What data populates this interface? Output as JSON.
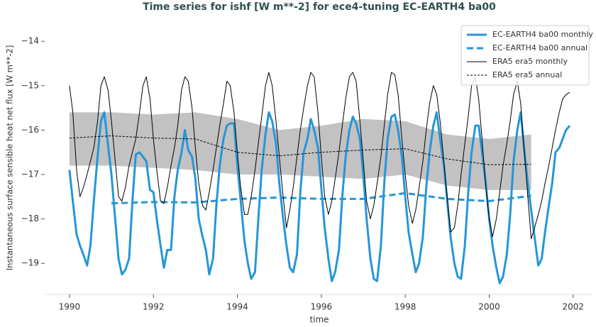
{
  "chart_data": {
    "type": "line",
    "title": "Time series for ishf [W m**-2] for ece4-tuning EC-EARTH4 ba00",
    "x_label": "time",
    "y_label": "Instantaneous surface sensible heat net flux [W m**-2]",
    "xlim": [
      1989.41,
      2002.46
    ],
    "ylim": [
      -19.7,
      -13.55
    ],
    "xticks": [
      1990,
      1992,
      1994,
      1996,
      1998,
      2000,
      2002
    ],
    "yticks": [
      {
        "value": -14,
        "label": "−14"
      },
      {
        "value": -15,
        "label": "−15"
      },
      {
        "value": -16,
        "label": "−16"
      },
      {
        "value": -17,
        "label": "−17"
      },
      {
        "value": -18,
        "label": "−18"
      },
      {
        "value": -19,
        "label": "−19"
      }
    ],
    "legend": "upper right",
    "x": [
      1990,
      1990.08,
      1990.17,
      1990.25,
      1990.33,
      1990.42,
      1990.5,
      1990.58,
      1990.67,
      1990.75,
      1990.83,
      1990.92,
      1991,
      1991.08,
      1991.17,
      1991.25,
      1991.33,
      1991.42,
      1991.5,
      1991.58,
      1991.67,
      1991.75,
      1991.83,
      1991.92,
      1992,
      1992.08,
      1992.17,
      1992.25,
      1992.33,
      1992.42,
      1992.5,
      1992.58,
      1992.67,
      1992.75,
      1992.83,
      1992.92,
      1993,
      1993.08,
      1993.17,
      1993.25,
      1993.33,
      1993.42,
      1993.5,
      1993.58,
      1993.67,
      1993.75,
      1993.83,
      1993.92,
      1994,
      1994.08,
      1994.17,
      1994.25,
      1994.33,
      1994.42,
      1994.5,
      1994.58,
      1994.67,
      1994.75,
      1994.83,
      1994.92,
      1995,
      1995.08,
      1995.17,
      1995.25,
      1995.33,
      1995.42,
      1995.5,
      1995.58,
      1995.67,
      1995.75,
      1995.83,
      1995.92,
      1996,
      1996.08,
      1996.17,
      1996.25,
      1996.33,
      1996.42,
      1996.5,
      1996.58,
      1996.67,
      1996.75,
      1996.83,
      1996.92,
      1997,
      1997.08,
      1997.17,
      1997.25,
      1997.33,
      1997.42,
      1997.5,
      1997.58,
      1997.67,
      1997.75,
      1997.83,
      1997.92,
      1998,
      1998.08,
      1998.17,
      1998.25,
      1998.33,
      1998.42,
      1998.5,
      1998.58,
      1998.67,
      1998.75,
      1998.83,
      1998.92,
      1999,
      1999.08,
      1999.17,
      1999.25,
      1999.33,
      1999.42,
      1999.5,
      1999.58,
      1999.67,
      1999.75,
      1999.83,
      1999.92,
      2000,
      2000.08,
      2000.17,
      2000.25,
      2000.33,
      2000.42,
      2000.5,
      2000.58,
      2000.67,
      2000.75,
      2000.83,
      2000.92,
      2001,
      2001.08,
      2001.17,
      2001.25,
      2001.33,
      2001.42,
      2001.5,
      2001.58,
      2001.67,
      2001.75,
      2001.83,
      2001.92
    ],
    "series": [
      {
        "name": "EC-EARTH4 ba00 monthly",
        "color": "#2596d9",
        "dash": false,
        "width": 3,
        "values": [
          -16.9,
          -17.6,
          -18.35,
          -18.6,
          -18.8,
          -19.05,
          -18.6,
          -17.6,
          -16.6,
          -15.8,
          -15.6,
          -16.35,
          -17.0,
          -17.9,
          -18.9,
          -19.25,
          -19.15,
          -18.9,
          -17.6,
          -16.55,
          -16.5,
          -16.6,
          -16.7,
          -17.35,
          -17.4,
          -18.0,
          -18.6,
          -19.1,
          -18.7,
          -18.7,
          -17.5,
          -16.9,
          -16.5,
          -16.0,
          -16.45,
          -16.6,
          -17.1,
          -18.0,
          -18.4,
          -18.7,
          -19.25,
          -18.9,
          -17.7,
          -16.8,
          -16.2,
          -15.9,
          -15.85,
          -15.85,
          -16.8,
          -17.6,
          -18.5,
          -19.0,
          -19.35,
          -19.2,
          -18.0,
          -16.9,
          -16.1,
          -15.6,
          -15.8,
          -16.3,
          -17.2,
          -17.9,
          -18.6,
          -19.1,
          -19.2,
          -18.8,
          -17.4,
          -16.5,
          -16.2,
          -15.75,
          -16.0,
          -16.4,
          -17.3,
          -18.2,
          -18.9,
          -19.4,
          -19.2,
          -18.7,
          -17.5,
          -16.6,
          -16.0,
          -15.7,
          -15.85,
          -16.2,
          -17.0,
          -18.0,
          -18.9,
          -19.35,
          -19.4,
          -18.6,
          -17.2,
          -16.2,
          -15.7,
          -15.65,
          -16.0,
          -16.6,
          -17.5,
          -18.3,
          -18.8,
          -19.2,
          -19.0,
          -18.4,
          -17.3,
          -16.5,
          -15.9,
          -15.6,
          -16.2,
          -16.8,
          -17.6,
          -18.4,
          -19.0,
          -19.3,
          -19.35,
          -18.6,
          -17.4,
          -16.5,
          -15.9,
          -15.9,
          -16.5,
          -17.2,
          -18.0,
          -18.6,
          -19.1,
          -19.45,
          -19.3,
          -18.8,
          -17.9,
          -16.7,
          -16.0,
          -15.6,
          -16.4,
          -17.2,
          -17.8,
          -18.4,
          -19.05,
          -18.9,
          -18.3,
          -17.7,
          -17.2,
          -16.5,
          -16.4,
          -16.2,
          -16.0,
          -15.9
        ]
      },
      {
        "name": "EC-EARTH4 ba00 annual",
        "color": "#2596d9",
        "dash": true,
        "width": 3,
        "x": [
          1991,
          1992,
          1993,
          1994,
          1995,
          1996,
          1997,
          1998,
          1999,
          2000,
          2001
        ],
        "values": [
          -17.65,
          -17.62,
          -17.63,
          -17.55,
          -17.52,
          -17.55,
          -17.55,
          -17.42,
          -17.55,
          -17.6,
          -17.48
        ]
      },
      {
        "name": "ERA5 era5 monthly",
        "color": "#000000",
        "dash": false,
        "width": 1,
        "values": [
          -15.0,
          -15.6,
          -16.9,
          -17.5,
          -17.3,
          -17.0,
          -16.7,
          -16.4,
          -15.8,
          -15.0,
          -14.8,
          -15.1,
          -15.8,
          -16.6,
          -17.5,
          -17.6,
          -17.3,
          -16.8,
          -16.5,
          -16.2,
          -15.6,
          -15.0,
          -14.8,
          -15.3,
          -16.2,
          -16.9,
          -17.6,
          -17.65,
          -17.3,
          -16.8,
          -16.4,
          -15.9,
          -15.1,
          -14.8,
          -14.9,
          -15.5,
          -16.4,
          -17.2,
          -17.7,
          -17.8,
          -17.4,
          -16.9,
          -16.4,
          -15.9,
          -15.4,
          -14.9,
          -15.0,
          -15.6,
          -16.5,
          -17.3,
          -17.9,
          -17.9,
          -17.5,
          -16.9,
          -16.3,
          -15.7,
          -15.0,
          -14.7,
          -15.0,
          -15.8,
          -16.6,
          -17.4,
          -18.2,
          -17.8,
          -17.3,
          -16.6,
          -16.0,
          -15.5,
          -15.0,
          -14.7,
          -14.8,
          -15.6,
          -16.6,
          -17.5,
          -17.9,
          -17.6,
          -17.1,
          -16.5,
          -15.9,
          -15.3,
          -14.8,
          -14.7,
          -14.9,
          -15.8,
          -16.7,
          -17.6,
          -18.0,
          -17.7,
          -17.2,
          -16.6,
          -15.9,
          -15.2,
          -14.7,
          -14.75,
          -15.2,
          -16.2,
          -17.0,
          -17.7,
          -18.1,
          -17.8,
          -17.3,
          -16.7,
          -16.0,
          -15.4,
          -15.0,
          -15.2,
          -15.8,
          -16.7,
          -17.5,
          -18.3,
          -18.2,
          -17.7,
          -17.0,
          -16.3,
          -15.7,
          -15.0,
          -14.8,
          -15.3,
          -16.2,
          -17.3,
          -18.0,
          -18.4,
          -18.0,
          -17.4,
          -16.8,
          -16.3,
          -15.8,
          -15.2,
          -14.9,
          -15.4,
          -16.4,
          -17.5,
          -18.45,
          -18.2,
          -17.9,
          -17.6,
          -17.2,
          -16.8,
          -16.4,
          -16.0,
          -15.6,
          -15.3,
          -15.2,
          -15.15
        ]
      },
      {
        "name": "ERA5 era5 annual",
        "color": "#000000",
        "dash": true,
        "width": 1,
        "band_color": "#9a9a9a",
        "x": [
          1990,
          1991,
          1992,
          1993,
          1994,
          1995,
          1996,
          1997,
          1998,
          1999,
          2000,
          2001
        ],
        "values": [
          -16.18,
          -16.13,
          -16.18,
          -16.2,
          -16.5,
          -16.58,
          -16.5,
          -16.45,
          -16.42,
          -16.65,
          -16.78,
          -16.77
        ],
        "lower": [
          -16.8,
          -16.8,
          -16.85,
          -16.9,
          -17.0,
          -17.0,
          -17.05,
          -17.1,
          -17.0,
          -17.25,
          -17.35,
          -17.35
        ],
        "upper": [
          -15.6,
          -15.6,
          -15.65,
          -15.6,
          -15.75,
          -16.0,
          -15.9,
          -15.75,
          -15.8,
          -16.1,
          -16.2,
          -16.1
        ]
      }
    ]
  }
}
